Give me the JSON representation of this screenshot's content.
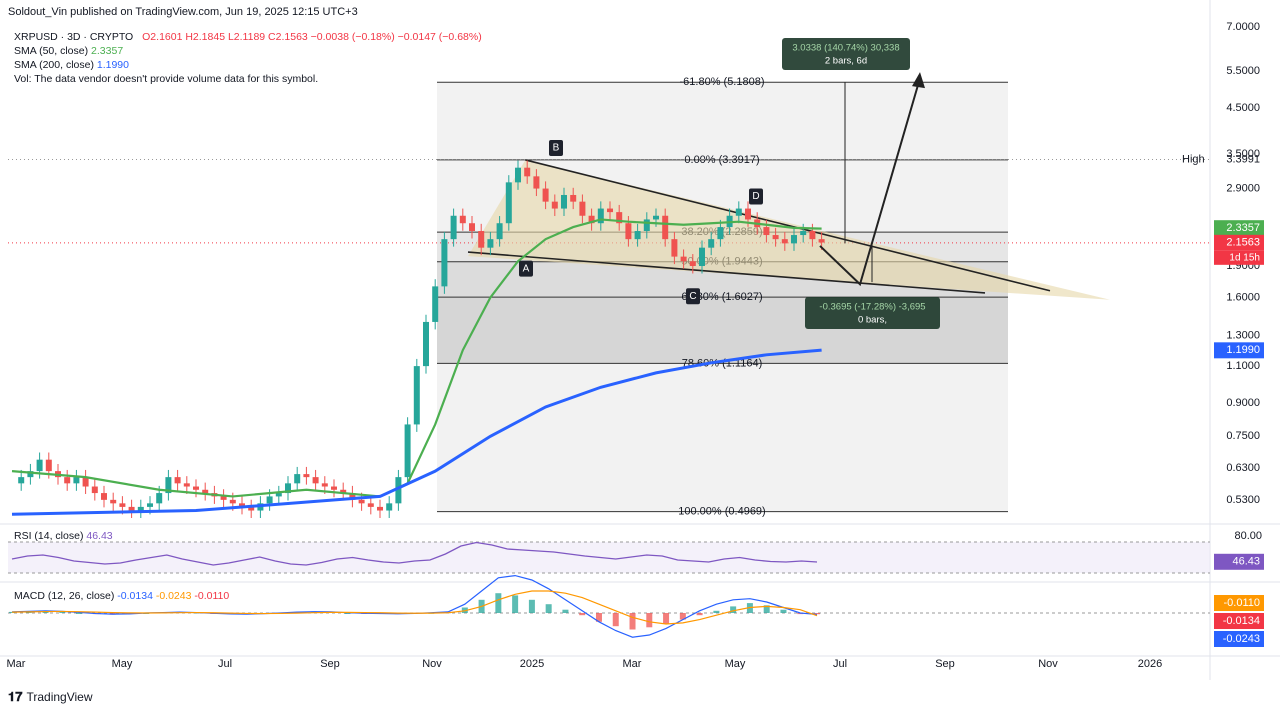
{
  "header": {
    "publisher": "Soldout_Vin published on TradingView.com, Jun 19, 2025 12:15 UTC+3",
    "symbol_line": "XRPUSD · 3D · CRYPTO",
    "ohlc": "O2.1601 H2.1845 L2.1189 C2.1563 −0.0038 (−0.18%) −0.0147 (−0.68%)",
    "sma50_label": "SMA (50, close)",
    "sma50_value": "2.3357",
    "sma200_label": "SMA (200, close)",
    "sma200_value": "1.1990",
    "vol_note": "Vol: The data vendor doesn't provide volume data for this symbol."
  },
  "colors": {
    "up": "#26a69a",
    "down": "#ef5350",
    "sma50": "#4caf50",
    "sma200": "#2962ff",
    "fib_zone_light": "#eeeeee",
    "fib_zone_mid": "#dddddd",
    "triangle_fill": "#e6d7a8",
    "rsi_line": "#7e57c2",
    "macd_line": "#2962ff",
    "signal_line": "#ff9800"
  },
  "chart_data": {
    "type": "candlestick",
    "symbol": "XRPUSD",
    "timeframe": "3D",
    "y_axis_labels": [
      "7.0000",
      "5.5000",
      "4.5000",
      "3.5000",
      "2.9000",
      "2.3357",
      "2.1563",
      "1.9000",
      "1.6000",
      "1.3000",
      "1.1990",
      "1.1000",
      "0.9000",
      "0.7500",
      "0.6300",
      "0.5300"
    ],
    "y_ticks": [
      7.0,
      5.5,
      4.5,
      3.5,
      2.9,
      1.9,
      1.6,
      1.3,
      1.1,
      0.9,
      0.75,
      0.63,
      0.53
    ],
    "x_axis_labels": [
      "Mar",
      "May",
      "Jul",
      "Sep",
      "Nov",
      "2025",
      "Mar",
      "May",
      "Jul",
      "Sep",
      "Nov",
      "2026"
    ],
    "ylim": [
      0.48,
      7.2
    ],
    "price_series": [
      [
        0,
        0.58
      ],
      [
        5,
        0.6
      ],
      [
        10,
        0.62
      ],
      [
        15,
        0.66
      ],
      [
        20,
        0.62
      ],
      [
        25,
        0.6
      ],
      [
        30,
        0.58
      ],
      [
        35,
        0.6
      ],
      [
        40,
        0.57
      ],
      [
        45,
        0.55
      ],
      [
        50,
        0.53
      ],
      [
        55,
        0.52
      ],
      [
        60,
        0.51
      ],
      [
        65,
        0.5
      ],
      [
        70,
        0.51
      ],
      [
        75,
        0.52
      ],
      [
        80,
        0.55
      ],
      [
        85,
        0.6
      ],
      [
        90,
        0.58
      ],
      [
        95,
        0.57
      ],
      [
        100,
        0.56
      ],
      [
        105,
        0.55
      ],
      [
        110,
        0.54
      ],
      [
        115,
        0.53
      ],
      [
        120,
        0.52
      ],
      [
        125,
        0.51
      ],
      [
        130,
        0.5
      ],
      [
        135,
        0.52
      ],
      [
        140,
        0.54
      ],
      [
        145,
        0.55
      ],
      [
        150,
        0.58
      ],
      [
        155,
        0.61
      ],
      [
        160,
        0.6
      ],
      [
        165,
        0.58
      ],
      [
        170,
        0.57
      ],
      [
        175,
        0.56
      ],
      [
        180,
        0.55
      ],
      [
        185,
        0.53
      ],
      [
        190,
        0.52
      ],
      [
        195,
        0.51
      ],
      [
        200,
        0.5
      ],
      [
        205,
        0.52
      ],
      [
        210,
        0.6
      ],
      [
        215,
        0.8
      ],
      [
        220,
        1.1
      ],
      [
        225,
        1.4
      ],
      [
        230,
        1.7
      ],
      [
        235,
        2.2
      ],
      [
        240,
        2.5
      ],
      [
        245,
        2.4
      ],
      [
        250,
        2.3
      ],
      [
        255,
        2.1
      ],
      [
        260,
        2.2
      ],
      [
        265,
        2.4
      ],
      [
        270,
        3.0
      ],
      [
        275,
        3.25
      ],
      [
        280,
        3.1
      ],
      [
        285,
        2.9
      ],
      [
        290,
        2.7
      ],
      [
        295,
        2.6
      ],
      [
        300,
        2.8
      ],
      [
        305,
        2.7
      ],
      [
        310,
        2.5
      ],
      [
        315,
        2.4
      ],
      [
        320,
        2.6
      ],
      [
        325,
        2.55
      ],
      [
        330,
        2.4
      ],
      [
        335,
        2.2
      ],
      [
        340,
        2.3
      ],
      [
        345,
        2.45
      ],
      [
        350,
        2.5
      ],
      [
        355,
        2.2
      ],
      [
        360,
        2.0
      ],
      [
        365,
        1.95
      ],
      [
        370,
        1.9
      ],
      [
        375,
        2.1
      ],
      [
        380,
        2.2
      ],
      [
        385,
        2.35
      ],
      [
        390,
        2.5
      ],
      [
        395,
        2.6
      ],
      [
        400,
        2.45
      ],
      [
        405,
        2.35
      ],
      [
        410,
        2.25
      ],
      [
        415,
        2.2
      ],
      [
        420,
        2.15
      ],
      [
        425,
        2.25
      ],
      [
        430,
        2.3
      ],
      [
        435,
        2.2
      ],
      [
        440,
        2.16
      ]
    ],
    "sma50_points": [
      [
        0,
        0.62
      ],
      [
        40,
        0.6
      ],
      [
        80,
        0.56
      ],
      [
        120,
        0.54
      ],
      [
        160,
        0.56
      ],
      [
        200,
        0.54
      ],
      [
        215,
        0.58
      ],
      [
        230,
        0.8
      ],
      [
        245,
        1.2
      ],
      [
        260,
        1.6
      ],
      [
        275,
        1.95
      ],
      [
        290,
        2.2
      ],
      [
        305,
        2.35
      ],
      [
        320,
        2.45
      ],
      [
        335,
        2.42
      ],
      [
        350,
        2.4
      ],
      [
        365,
        2.38
      ],
      [
        380,
        2.4
      ],
      [
        395,
        2.42
      ],
      [
        410,
        2.38
      ],
      [
        425,
        2.34
      ],
      [
        440,
        2.33
      ]
    ],
    "sma200_points": [
      [
        0,
        0.49
      ],
      [
        100,
        0.5
      ],
      [
        200,
        0.54
      ],
      [
        230,
        0.62
      ],
      [
        260,
        0.75
      ],
      [
        290,
        0.88
      ],
      [
        320,
        0.98
      ],
      [
        350,
        1.06
      ],
      [
        380,
        1.12
      ],
      [
        410,
        1.17
      ],
      [
        440,
        1.2
      ]
    ],
    "fib_levels": [
      {
        "label": "-61.80% (5.1808)",
        "value": 5.1808
      },
      {
        "label": "0.00% (3.3917)",
        "value": 3.3917
      },
      {
        "label": "38.20% (2.2859)",
        "value": 2.2859
      },
      {
        "label": "50.00% (1.9443)",
        "value": 1.9443
      },
      {
        "label": "61.80% (1.6027)",
        "value": 1.6027
      },
      {
        "label": "78.60% (1.1164)",
        "value": 1.1164
      },
      {
        "label": "100.00% (0.4969)",
        "value": 0.4969
      }
    ],
    "points": [
      {
        "label": "A",
        "value": 2.0
      },
      {
        "label": "B",
        "value": 3.39
      },
      {
        "label": "C",
        "value": 1.72
      },
      {
        "label": "D",
        "value": 2.6
      }
    ],
    "measure_up": {
      "line1": "3.0338 (140.74%) 30,338",
      "line2": "2 bars, 6d"
    },
    "measure_down": {
      "line1": "-0.3695 (-17.28%) -3,695",
      "line2": "0 bars,"
    },
    "price_tags": {
      "high_label": "High",
      "high_value": "3.3991",
      "sma50": "2.3357",
      "last": "2.1563",
      "countdown": "1d 15h",
      "sma200": "1.1990"
    },
    "rsi": {
      "label": "RSI (14, close)",
      "value": "46.43",
      "upper_level_label": "80.00",
      "series": [
        52,
        58,
        60,
        55,
        48,
        45,
        42,
        44,
        50,
        55,
        60,
        52,
        46,
        40,
        44,
        50,
        56,
        48,
        42,
        40,
        45,
        52,
        55,
        50,
        46,
        44,
        48,
        50,
        62,
        78,
        85,
        80,
        72,
        70,
        68,
        66,
        62,
        58,
        55,
        52,
        56,
        60,
        58,
        50,
        48,
        46,
        52,
        55,
        50,
        47,
        46,
        48,
        46
      ]
    },
    "macd": {
      "label": "MACD (12, 26, close)",
      "macd_value": "-0.0134",
      "signal_value": "-0.0243",
      "hist_value": "-0.0110",
      "tags": [
        "-0.0110",
        "-0.0134",
        "-0.0243"
      ],
      "histogram": [
        0.01,
        0.015,
        0.02,
        0.01,
        0,
        -0.01,
        -0.015,
        -0.01,
        0,
        0.005,
        0.01,
        0.005,
        -0.005,
        -0.01,
        -0.012,
        -0.008,
        0,
        0.01,
        0.015,
        0.01,
        0,
        -0.005,
        -0.008,
        -0.01,
        -0.005,
        0.002,
        0.008,
        0.05,
        0.12,
        0.18,
        0.16,
        0.12,
        0.08,
        0.03,
        -0.02,
        -0.08,
        -0.12,
        -0.15,
        -0.13,
        -0.1,
        -0.06,
        -0.02,
        0.02,
        0.06,
        0.09,
        0.07,
        0.03,
        -0.01,
        -0.011
      ],
      "macd_line": [
        0.01,
        0.015,
        0.02,
        0.015,
        0.005,
        -0.005,
        -0.01,
        -0.008,
        0,
        0.004,
        0.008,
        0.004,
        -0.003,
        -0.008,
        -0.01,
        -0.006,
        0,
        0.008,
        0.012,
        0.01,
        0.003,
        -0.002,
        -0.005,
        -0.007,
        -0.004,
        0.002,
        0.01,
        0.08,
        0.2,
        0.32,
        0.34,
        0.3,
        0.22,
        0.12,
        0.02,
        -0.08,
        -0.16,
        -0.22,
        -0.2,
        -0.14,
        -0.06,
        0.02,
        0.08,
        0.12,
        0.13,
        0.1,
        0.05,
        0.0,
        -0.013
      ],
      "signal_line": [
        0.008,
        0.01,
        0.013,
        0.014,
        0.012,
        0.008,
        0.004,
        0.001,
        0,
        0.001,
        0.003,
        0.004,
        0.002,
        -0.001,
        -0.004,
        -0.005,
        -0.004,
        -0.001,
        0.003,
        0.006,
        0.006,
        0.004,
        0.002,
        -0.001,
        -0.002,
        -0.001,
        0.002,
        0.02,
        0.06,
        0.12,
        0.17,
        0.2,
        0.2,
        0.18,
        0.14,
        0.08,
        0.02,
        -0.04,
        -0.08,
        -0.1,
        -0.09,
        -0.06,
        -0.02,
        0.02,
        0.05,
        0.06,
        0.05,
        0.03,
        -0.024
      ]
    }
  },
  "footer": {
    "brand": "TradingView"
  }
}
